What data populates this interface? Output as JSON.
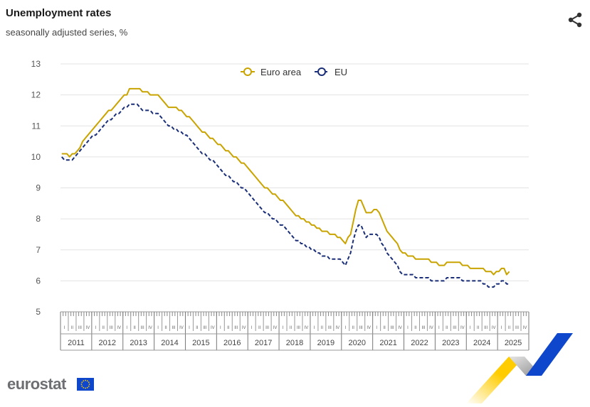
{
  "header": {
    "title": "Unemployment rates",
    "subtitle": "seasonally adjusted series, %"
  },
  "icons": {
    "share": "share-icon",
    "logo_flag": "eu-flag-icon"
  },
  "logo": {
    "text": "eurostat"
  },
  "colors": {
    "euro_area": "#c9a400",
    "eu": "#1b2f78",
    "grid": "#e3e3e3",
    "logo_yellow": "#ffcc00",
    "logo_blue": "#0e47cb"
  },
  "chart_data": {
    "type": "line",
    "x_unit": "month",
    "x_start": "2011-01",
    "ylim": [
      5,
      13
    ],
    "yticks": [
      5,
      6,
      7,
      8,
      9,
      10,
      11,
      12,
      13
    ],
    "year_labels": [
      "2011",
      "2012",
      "2013",
      "2014",
      "2015",
      "2016",
      "2017",
      "2018",
      "2019",
      "2020",
      "2021",
      "2022",
      "2023",
      "2024",
      "2025"
    ],
    "quarter_labels": [
      "I",
      "II",
      "III",
      "IV"
    ],
    "grid": true,
    "legend_position": "top-center",
    "series": [
      {
        "name": "Euro area",
        "key": "euro_area",
        "style": "solid",
        "keyframes": [
          [
            "2011-01",
            10.1
          ],
          [
            "2011-03",
            10.1
          ],
          [
            "2011-04",
            10.0
          ],
          [
            "2011-06",
            10.1
          ],
          [
            "2011-08",
            10.3
          ],
          [
            "2011-10",
            10.6
          ],
          [
            "2011-12",
            10.8
          ],
          [
            "2012-03",
            11.1
          ],
          [
            "2012-06",
            11.4
          ],
          [
            "2012-09",
            11.6
          ],
          [
            "2012-12",
            11.9
          ],
          [
            "2013-02",
            12.0
          ],
          [
            "2013-03",
            12.2
          ],
          [
            "2013-06",
            12.2
          ],
          [
            "2013-09",
            12.1
          ],
          [
            "2013-12",
            12.0
          ],
          [
            "2014-02",
            12.0
          ],
          [
            "2014-05",
            11.7
          ],
          [
            "2014-06",
            11.6
          ],
          [
            "2014-09",
            11.6
          ],
          [
            "2014-12",
            11.4
          ],
          [
            "2015-03",
            11.2
          ],
          [
            "2015-06",
            10.9
          ],
          [
            "2015-09",
            10.7
          ],
          [
            "2015-12",
            10.5
          ],
          [
            "2016-03",
            10.3
          ],
          [
            "2016-06",
            10.1
          ],
          [
            "2016-09",
            9.9
          ],
          [
            "2016-12",
            9.7
          ],
          [
            "2017-03",
            9.4
          ],
          [
            "2017-06",
            9.1
          ],
          [
            "2017-09",
            8.9
          ],
          [
            "2017-12",
            8.7
          ],
          [
            "2018-03",
            8.5
          ],
          [
            "2018-06",
            8.2
          ],
          [
            "2018-09",
            8.0
          ],
          [
            "2018-12",
            7.9
          ],
          [
            "2019-03",
            7.7
          ],
          [
            "2019-06",
            7.6
          ],
          [
            "2019-09",
            7.5
          ],
          [
            "2019-12",
            7.4
          ],
          [
            "2020-01",
            7.3
          ],
          [
            "2020-02",
            7.2
          ],
          [
            "2020-04",
            7.5
          ],
          [
            "2020-06",
            8.3
          ],
          [
            "2020-07",
            8.6
          ],
          [
            "2020-08",
            8.6
          ],
          [
            "2020-10",
            8.2
          ],
          [
            "2020-12",
            8.2
          ],
          [
            "2021-02",
            8.3
          ],
          [
            "2021-04",
            8.0
          ],
          [
            "2021-06",
            7.6
          ],
          [
            "2021-09",
            7.3
          ],
          [
            "2021-12",
            6.9
          ],
          [
            "2022-03",
            6.8
          ],
          [
            "2022-06",
            6.7
          ],
          [
            "2022-09",
            6.7
          ],
          [
            "2022-12",
            6.6
          ],
          [
            "2023-03",
            6.5
          ],
          [
            "2023-06",
            6.6
          ],
          [
            "2023-09",
            6.6
          ],
          [
            "2023-12",
            6.5
          ],
          [
            "2024-03",
            6.4
          ],
          [
            "2024-06",
            6.4
          ],
          [
            "2024-09",
            6.3
          ],
          [
            "2024-11",
            6.2
          ],
          [
            "2025-01",
            6.3
          ],
          [
            "2025-03",
            6.4
          ],
          [
            "2025-04",
            6.2
          ],
          [
            "2025-05",
            6.3
          ]
        ]
      },
      {
        "name": "EU",
        "key": "eu",
        "style": "dashed",
        "keyframes": [
          [
            "2011-01",
            10.0
          ],
          [
            "2011-02",
            9.9
          ],
          [
            "2011-05",
            9.9
          ],
          [
            "2011-08",
            10.2
          ],
          [
            "2011-11",
            10.5
          ],
          [
            "2012-03",
            10.8
          ],
          [
            "2012-06",
            11.1
          ],
          [
            "2012-09",
            11.3
          ],
          [
            "2012-12",
            11.5
          ],
          [
            "2013-03",
            11.7
          ],
          [
            "2013-06",
            11.7
          ],
          [
            "2013-08",
            11.5
          ],
          [
            "2013-10",
            11.5
          ],
          [
            "2013-12",
            11.4
          ],
          [
            "2014-02",
            11.4
          ],
          [
            "2014-06",
            11.0
          ],
          [
            "2014-08",
            10.9
          ],
          [
            "2014-11",
            10.8
          ],
          [
            "2015-03",
            10.5
          ],
          [
            "2015-06",
            10.2
          ],
          [
            "2015-09",
            10.0
          ],
          [
            "2015-12",
            9.8
          ],
          [
            "2016-03",
            9.5
          ],
          [
            "2016-06",
            9.3
          ],
          [
            "2016-09",
            9.1
          ],
          [
            "2016-12",
            8.9
          ],
          [
            "2017-03",
            8.6
          ],
          [
            "2017-06",
            8.3
          ],
          [
            "2017-09",
            8.1
          ],
          [
            "2017-12",
            7.9
          ],
          [
            "2018-03",
            7.7
          ],
          [
            "2018-06",
            7.4
          ],
          [
            "2018-09",
            7.2
          ],
          [
            "2018-12",
            7.1
          ],
          [
            "2019-03",
            6.9
          ],
          [
            "2019-06",
            6.8
          ],
          [
            "2019-09",
            6.7
          ],
          [
            "2019-12",
            6.7
          ],
          [
            "2020-02",
            6.5
          ],
          [
            "2020-04",
            6.9
          ],
          [
            "2020-06",
            7.6
          ],
          [
            "2020-07",
            7.8
          ],
          [
            "2020-08",
            7.8
          ],
          [
            "2020-10",
            7.4
          ],
          [
            "2020-12",
            7.5
          ],
          [
            "2021-02",
            7.5
          ],
          [
            "2021-04",
            7.2
          ],
          [
            "2021-06",
            6.9
          ],
          [
            "2021-09",
            6.6
          ],
          [
            "2021-12",
            6.2
          ],
          [
            "2022-03",
            6.2
          ],
          [
            "2022-06",
            6.1
          ],
          [
            "2022-09",
            6.1
          ],
          [
            "2022-12",
            6.0
          ],
          [
            "2023-03",
            6.0
          ],
          [
            "2023-06",
            6.1
          ],
          [
            "2023-09",
            6.1
          ],
          [
            "2023-12",
            6.0
          ],
          [
            "2024-03",
            6.0
          ],
          [
            "2024-06",
            6.0
          ],
          [
            "2024-09",
            5.8
          ],
          [
            "2024-11",
            5.8
          ],
          [
            "2025-01",
            5.9
          ],
          [
            "2025-03",
            6.0
          ],
          [
            "2025-04",
            5.9
          ],
          [
            "2025-05",
            5.9
          ]
        ]
      }
    ]
  }
}
